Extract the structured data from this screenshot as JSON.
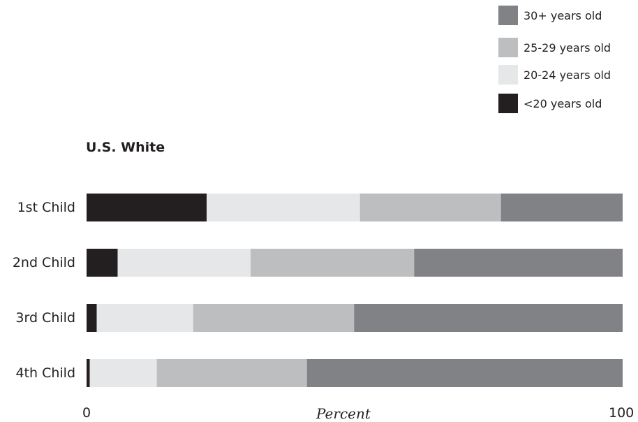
{
  "chart_data": {
    "type": "bar",
    "orientation": "horizontal",
    "stacked": true,
    "title": "",
    "subtitle": "U.S. White",
    "xlabel": "Percent",
    "ylabel": "",
    "xlim": [
      0,
      100
    ],
    "x_ticks": [
      "0",
      "100"
    ],
    "categories": [
      "1st Child",
      "2nd Child",
      "3rd Child",
      "4th Child"
    ],
    "series": [
      {
        "name": "<20 years old",
        "color": "#231f20",
        "values": [
          22.4,
          5.8,
          1.9,
          0.6
        ]
      },
      {
        "name": "20-24 years old",
        "color": "#e6e7e8",
        "values": [
          28.6,
          24.8,
          18.0,
          12.5
        ]
      },
      {
        "name": "25-29 years old",
        "color": "#bcbec0",
        "values": [
          26.3,
          30.5,
          30.0,
          28.0
        ]
      },
      {
        "name": "30+ years old",
        "color": "#808285",
        "values": [
          22.7,
          38.9,
          50.1,
          58.9
        ]
      }
    ],
    "legend": {
      "position": "top-right",
      "order": [
        "30+ years old",
        "25-29 years old",
        "20-24 years old",
        "<20 years old"
      ]
    },
    "grid": false
  }
}
